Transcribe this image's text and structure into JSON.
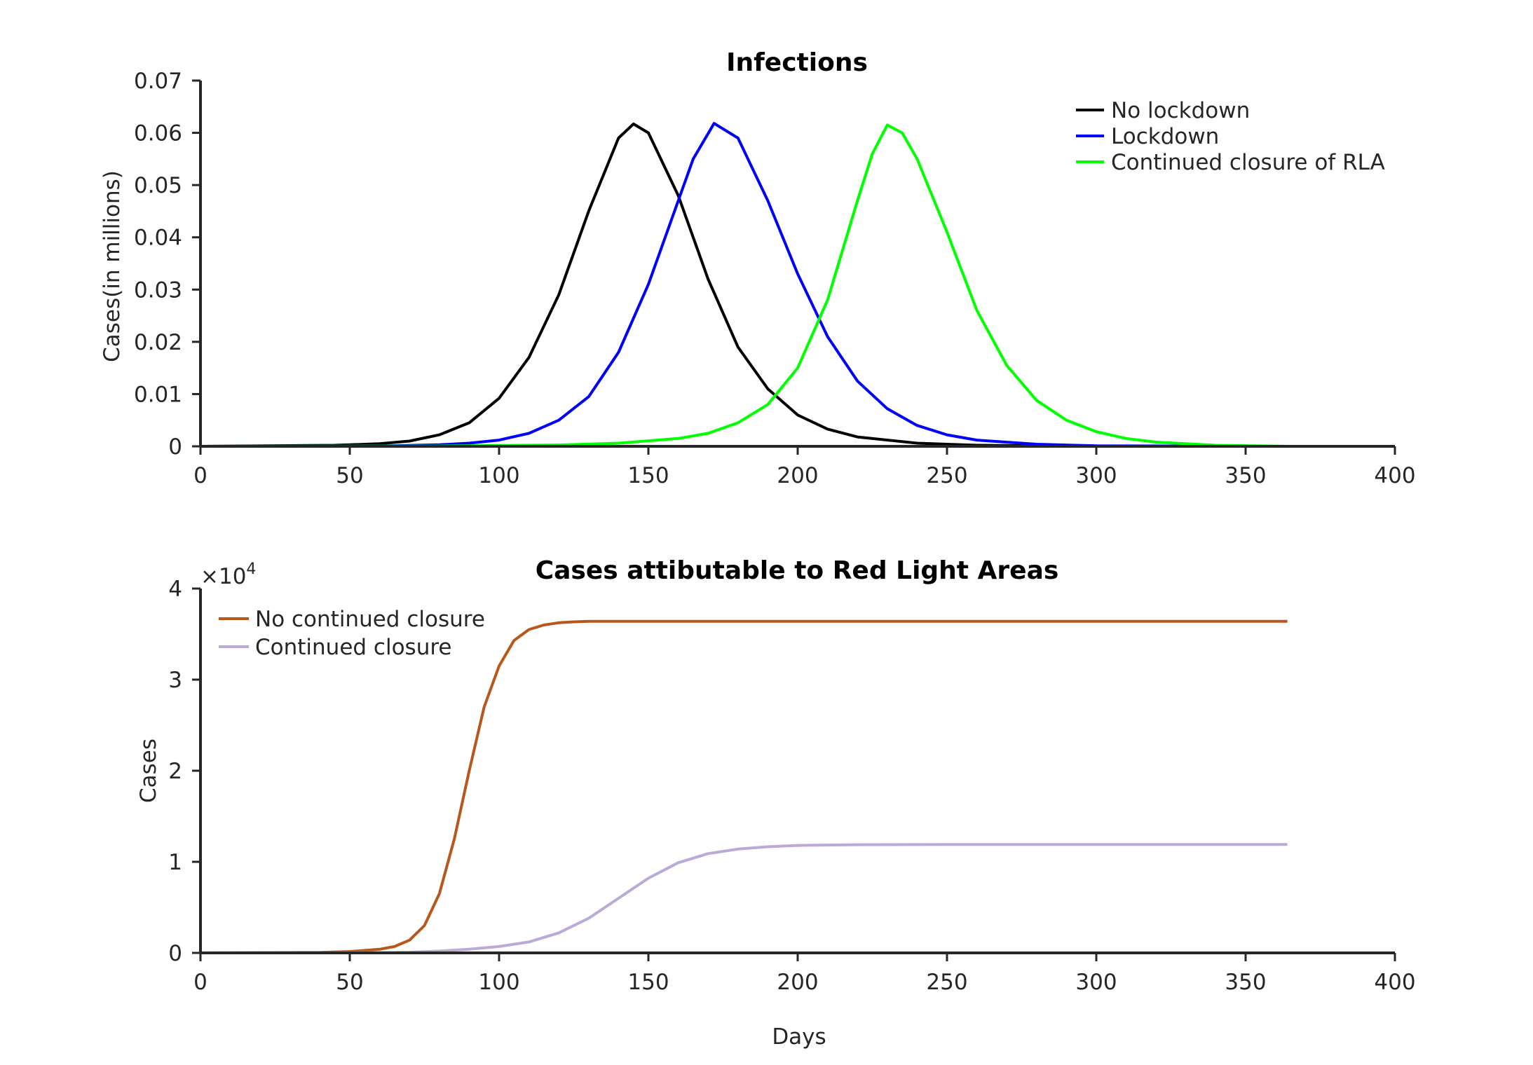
{
  "chart_data": [
    {
      "type": "line",
      "title": "Infections",
      "xlabel": "",
      "ylabel": "Cases(in millions)",
      "xlim": [
        0,
        400
      ],
      "ylim": [
        0,
        0.07
      ],
      "xticks": [
        "0",
        "50",
        "100",
        "150",
        "200",
        "250",
        "300",
        "350",
        "400"
      ],
      "yticks": [
        "0",
        "0.01",
        "0.02",
        "0.03",
        "0.04",
        "0.05",
        "0.06",
        "0.07"
      ],
      "legend_position": "top-right",
      "grid": false,
      "series": [
        {
          "name": "No lockdown",
          "color": "#000000",
          "x": [
            0,
            45,
            60,
            70,
            80,
            90,
            100,
            110,
            120,
            130,
            140,
            145,
            150,
            160,
            170,
            180,
            190,
            200,
            210,
            220,
            240,
            260,
            300,
            364
          ],
          "y": [
            0,
            0.0002,
            0.0005,
            0.001,
            0.0022,
            0.0045,
            0.0092,
            0.017,
            0.029,
            0.045,
            0.059,
            0.0617,
            0.06,
            0.048,
            0.032,
            0.019,
            0.011,
            0.006,
            0.0033,
            0.0018,
            0.0006,
            0.0002,
            2e-05,
            0
          ]
        },
        {
          "name": "Lockdown",
          "color": "#0000ff",
          "x": [
            0,
            60,
            80,
            90,
            100,
            110,
            120,
            130,
            140,
            150,
            160,
            165,
            172,
            180,
            190,
            200,
            210,
            220,
            230,
            240,
            250,
            260,
            280,
            300,
            364
          ],
          "y": [
            0,
            5e-05,
            0.0003,
            0.0006,
            0.0012,
            0.0025,
            0.005,
            0.0095,
            0.018,
            0.031,
            0.047,
            0.055,
            0.0618,
            0.059,
            0.047,
            0.033,
            0.021,
            0.0125,
            0.0072,
            0.004,
            0.0022,
            0.0012,
            0.0004,
            0.0001,
            0
          ]
        },
        {
          "name": "Continued closure of RLA",
          "color": "#00ff00",
          "x": [
            0,
            80,
            120,
            140,
            160,
            170,
            180,
            190,
            200,
            210,
            220,
            225,
            230,
            235,
            240,
            250,
            260,
            270,
            280,
            290,
            300,
            310,
            320,
            340,
            364
          ],
          "y": [
            0,
            5e-05,
            0.00025,
            0.0006,
            0.0015,
            0.0025,
            0.0045,
            0.008,
            0.015,
            0.028,
            0.047,
            0.056,
            0.0615,
            0.06,
            0.055,
            0.041,
            0.026,
            0.0155,
            0.0088,
            0.005,
            0.0028,
            0.0015,
            0.0008,
            0.0002,
            0
          ]
        }
      ]
    },
    {
      "type": "line",
      "title": "Cases attibutable to Red Light Areas",
      "xlabel": "Days",
      "ylabel": "Cases",
      "exponent_label": "×10",
      "exponent_power": "4",
      "xlim": [
        0,
        400
      ],
      "ylim": [
        0,
        40000
      ],
      "xticks": [
        "0",
        "50",
        "100",
        "150",
        "200",
        "250",
        "300",
        "350",
        "400"
      ],
      "yticks": [
        "0",
        "1",
        "2",
        "3",
        "4"
      ],
      "legend_position": "top-left",
      "grid": false,
      "series": [
        {
          "name": "No continued closure",
          "color": "#b8571b",
          "x": [
            0,
            40,
            50,
            60,
            65,
            70,
            75,
            80,
            85,
            90,
            95,
            100,
            105,
            110,
            115,
            120,
            125,
            130,
            140,
            150,
            364
          ],
          "y": [
            0,
            50,
            150,
            400,
            700,
            1400,
            3000,
            6500,
            12500,
            20000,
            27000,
            31500,
            34300,
            35500,
            36000,
            36250,
            36350,
            36400,
            36400,
            36400,
            36400
          ]
        },
        {
          "name": "Continued closure",
          "color": "#bba9d6",
          "x": [
            0,
            60,
            70,
            80,
            90,
            100,
            110,
            120,
            130,
            140,
            150,
            160,
            170,
            180,
            190,
            200,
            220,
            250,
            364
          ],
          "y": [
            0,
            30,
            80,
            200,
            400,
            700,
            1200,
            2200,
            3800,
            6000,
            8200,
            9900,
            10900,
            11400,
            11650,
            11800,
            11880,
            11900,
            11900
          ]
        }
      ]
    }
  ]
}
